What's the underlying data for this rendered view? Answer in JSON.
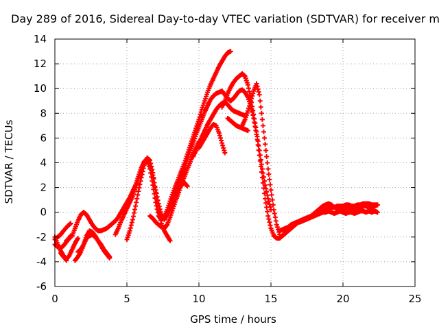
{
  "chart_data": {
    "type": "scatter",
    "title": "Day 289 of 2016, Sidereal Day-to-day VTEC variation (SDTVAR) for receiver m",
    "xlabel": "GPS time / hours",
    "ylabel": "SDTVAR / TECUs",
    "xlim": [
      0,
      25
    ],
    "ylim": [
      -6,
      14
    ],
    "xticks": [
      0,
      5,
      10,
      15,
      20,
      25
    ],
    "yticks": [
      -6,
      -4,
      -2,
      0,
      2,
      4,
      6,
      8,
      10,
      12,
      14
    ],
    "grid": true,
    "marker": "+",
    "color": "#ff0000",
    "series": [
      {
        "x": [
          0.0,
          0.2,
          0.4,
          0.6,
          0.9,
          1.1
        ],
        "y": [
          -2.2,
          -2.0,
          -1.8,
          -1.5,
          -1.1,
          -0.9
        ]
      },
      {
        "x": [
          0.0,
          0.2,
          0.4,
          0.6,
          0.8
        ],
        "y": [
          -2.0,
          -2.6,
          -3.1,
          -3.5,
          -3.9
        ]
      },
      {
        "x": [
          0.0,
          0.2,
          0.4,
          0.6,
          0.8,
          1.0,
          1.1
        ],
        "y": [
          -2.6,
          -2.8,
          -2.9,
          -2.7,
          -2.4,
          -2.1,
          -1.9
        ]
      },
      {
        "x": [
          0.8,
          1.0,
          1.2,
          1.4,
          1.6,
          1.8,
          2.0,
          2.2,
          2.4,
          2.6,
          2.8,
          3.0,
          3.2,
          3.4,
          3.6,
          3.8,
          4.0,
          4.2,
          4.4,
          4.6,
          4.8,
          5.0,
          5.2,
          5.4,
          5.6,
          5.8,
          6.0,
          6.2,
          6.4,
          6.6,
          6.8,
          7.0,
          7.2,
          7.4,
          7.6,
          7.8,
          8.0,
          8.2,
          8.4,
          8.6,
          8.8,
          9.0,
          9.2,
          9.4,
          9.6,
          9.8,
          10.0,
          10.2,
          10.4,
          10.6,
          10.8,
          11.0,
          11.2,
          11.4,
          11.6,
          11.8,
          12.0,
          12.2
        ],
        "y": [
          -2.3,
          -2.1,
          -1.9,
          -1.3,
          -0.7,
          -0.2,
          0.0,
          -0.2,
          -0.6,
          -1.0,
          -1.3,
          -1.5,
          -1.5,
          -1.4,
          -1.3,
          -1.1,
          -0.9,
          -0.7,
          -0.4,
          0.0,
          0.4,
          0.8,
          1.2,
          1.7,
          2.2,
          2.9,
          3.6,
          4.1,
          4.3,
          3.5,
          2.2,
          0.8,
          -0.3,
          -0.6,
          -0.4,
          0.2,
          0.9,
          1.6,
          2.2,
          2.8,
          3.4,
          4.0,
          4.7,
          5.4,
          6.1,
          6.8,
          7.5,
          8.3,
          9.0,
          9.7,
          10.3,
          10.8,
          11.3,
          11.8,
          12.2,
          12.6,
          12.9,
          13.0
        ]
      },
      {
        "x": [
          1.4,
          1.6,
          1.8,
          2.0,
          2.2,
          2.4,
          2.6,
          2.8,
          3.0,
          3.2,
          3.4,
          3.6,
          3.8
        ],
        "y": [
          -3.9,
          -3.6,
          -3.2,
          -2.6,
          -1.9,
          -1.5,
          -1.6,
          -1.9,
          -2.3,
          -2.7,
          -3.1,
          -3.4,
          -3.7
        ]
      },
      {
        "x": [
          1.6,
          1.8,
          2.0,
          2.2,
          2.4,
          2.6,
          2.8,
          3.0,
          3.2,
          3.4,
          3.6,
          3.8
        ],
        "y": [
          -3.2,
          -3.0,
          -2.6,
          -2.1,
          -1.9,
          -1.8,
          -2.0,
          -2.3,
          -2.6,
          -3.0,
          -3.3,
          -3.6
        ]
      },
      {
        "x": [
          0.4,
          0.6,
          0.8,
          1.0,
          1.2,
          1.4,
          1.6
        ],
        "y": [
          -3.3,
          -3.6,
          -3.8,
          -3.5,
          -3.0,
          -2.5,
          -2.1
        ]
      },
      {
        "x": [
          4.2,
          4.4,
          4.6,
          4.8,
          5.0,
          5.2,
          5.4,
          5.6,
          5.8,
          6.0,
          6.2,
          6.4,
          6.6,
          6.8,
          7.0,
          7.2,
          7.4,
          7.6,
          7.8,
          8.0,
          8.2,
          8.4,
          8.6,
          8.8,
          9.0,
          9.2,
          9.4,
          9.6,
          9.8,
          10.0,
          10.2,
          10.4,
          10.6,
          10.8,
          11.0,
          11.2,
          11.4,
          11.6,
          11.8,
          12.0,
          12.2,
          12.4,
          12.6,
          12.8,
          13.0,
          13.2,
          13.4,
          13.6,
          13.8,
          14.0,
          14.2,
          14.4,
          14.6,
          14.8,
          15.0,
          15.2,
          15.4,
          15.6,
          15.8,
          16.0,
          16.2,
          16.4,
          16.6,
          16.8,
          17.0,
          17.2,
          17.4,
          17.6,
          17.8,
          18.0,
          18.2,
          18.4,
          18.6,
          18.8,
          19.0,
          19.2,
          19.4,
          19.6,
          19.8,
          20.0,
          20.2,
          20.4,
          20.6,
          20.8,
          21.0,
          21.2,
          21.4,
          21.6,
          21.8,
          22.0,
          22.2,
          22.4
        ],
        "y": [
          -1.8,
          -1.3,
          -0.7,
          -0.2,
          0.3,
          0.8,
          1.3,
          2.0,
          2.7,
          3.4,
          4.0,
          4.2,
          3.8,
          3.0,
          1.8,
          0.7,
          -0.2,
          -0.5,
          -0.2,
          0.4,
          1.1,
          1.7,
          2.4,
          3.0,
          3.6,
          4.3,
          5.0,
          5.6,
          6.3,
          6.9,
          7.5,
          8.1,
          8.6,
          9.1,
          9.4,
          9.6,
          9.7,
          9.8,
          9.5,
          9.2,
          9.0,
          9.2,
          9.5,
          9.8,
          9.9,
          9.7,
          9.3,
          8.6,
          7.6,
          6.3,
          4.6,
          2.8,
          1.1,
          -0.3,
          -1.3,
          -1.9,
          -2.1,
          -2.1,
          -1.9,
          -1.6,
          -1.3,
          -1.1,
          -0.9,
          -0.8,
          -0.7,
          -0.6,
          -0.5,
          -0.4,
          -0.3,
          -0.2,
          -0.1,
          0.0,
          0.1,
          0.2,
          0.3,
          0.4,
          0.4,
          0.5,
          0.5,
          0.5,
          0.6,
          0.6,
          0.5,
          0.5,
          0.6,
          0.6,
          0.7,
          0.7,
          0.7,
          0.6,
          0.6,
          0.6
        ]
      },
      {
        "x": [
          5.0,
          5.2,
          5.4,
          5.6,
          5.8,
          6.0,
          6.2,
          6.4,
          6.6,
          6.8,
          7.0,
          7.2,
          7.4,
          7.6,
          7.8,
          8.0
        ],
        "y": [
          -2.2,
          -1.5,
          -0.6,
          0.5,
          1.7,
          2.8,
          3.8,
          4.4,
          4.2,
          3.2,
          1.6,
          0.1,
          -0.9,
          -1.5,
          -1.9,
          -2.3
        ]
      },
      {
        "x": [
          6.6,
          6.8,
          7.0,
          7.2,
          7.4,
          7.6,
          7.8,
          8.0,
          8.2,
          8.4,
          8.6,
          8.8,
          9.0,
          9.2,
          9.4,
          9.6,
          9.8,
          10.0
        ],
        "y": [
          -0.3,
          -0.5,
          -0.8,
          -1.0,
          -1.2,
          -1.3,
          -1.0,
          -0.4,
          0.3,
          1.0,
          1.6,
          2.3,
          2.9,
          3.5,
          4.1,
          4.7,
          5.2,
          5.7
        ]
      },
      {
        "x": [
          7.6,
          7.8,
          8.0,
          8.2,
          8.4,
          8.6,
          8.8,
          9.0,
          9.2
        ],
        "y": [
          -0.6,
          -0.1,
          0.5,
          1.0,
          1.5,
          1.9,
          2.2,
          2.4,
          2.1
        ]
      },
      {
        "x": [
          9.6,
          9.8,
          10.0,
          10.2,
          10.4,
          10.6,
          10.8,
          11.0,
          11.2,
          11.4,
          11.6,
          11.8,
          12.0,
          12.2,
          12.4,
          12.6,
          12.8,
          13.0,
          13.2
        ],
        "y": [
          4.5,
          5.0,
          5.6,
          6.1,
          6.6,
          7.1,
          7.5,
          7.9,
          8.3,
          8.6,
          8.8,
          8.9,
          8.7,
          8.4,
          8.2,
          8.1,
          8.0,
          7.9,
          7.8
        ]
      },
      {
        "x": [
          10.0,
          10.2,
          10.4,
          10.6,
          10.8,
          11.0,
          11.2,
          11.4,
          11.6,
          11.8
        ],
        "y": [
          5.2,
          5.6,
          6.0,
          6.4,
          6.8,
          7.1,
          7.0,
          6.4,
          5.6,
          4.8
        ]
      },
      {
        "x": [
          11.6,
          11.8,
          12.0,
          12.2,
          12.4,
          12.6,
          12.8,
          13.0,
          13.2,
          13.4,
          13.6,
          13.8,
          14.0,
          14.2,
          14.4,
          14.6,
          14.8,
          15.0
        ],
        "y": [
          8.5,
          9.0,
          9.6,
          10.1,
          10.5,
          10.8,
          11.0,
          11.2,
          11.0,
          10.3,
          9.2,
          7.9,
          6.5,
          5.0,
          3.5,
          2.2,
          1.1,
          0.2
        ]
      },
      {
        "x": [
          13.0,
          13.2,
          13.4,
          13.6,
          13.8,
          14.0,
          14.2,
          14.4,
          14.6,
          14.8,
          15.0,
          15.2,
          15.4,
          15.6
        ],
        "y": [
          7.0,
          7.5,
          8.2,
          9.0,
          9.8,
          10.4,
          9.5,
          7.5,
          5.5,
          3.5,
          1.8,
          0.2,
          -1.0,
          -1.8
        ]
      },
      {
        "x": [
          12.0,
          12.2,
          12.4,
          12.6,
          12.8,
          13.0,
          13.2,
          13.4
        ],
        "y": [
          7.6,
          7.4,
          7.2,
          7.0,
          6.9,
          6.8,
          6.7,
          6.6
        ]
      },
      {
        "x": [
          15.8,
          16.0,
          16.2,
          16.4,
          16.6,
          16.8,
          17.0,
          17.2,
          17.4,
          17.6,
          17.8,
          18.0,
          18.2,
          18.4,
          18.6,
          18.8,
          19.0,
          19.2,
          19.4,
          19.6,
          19.8,
          20.0,
          20.2,
          20.4,
          20.6,
          20.8,
          21.0,
          21.2,
          21.4,
          21.6,
          21.8,
          22.0,
          22.2,
          22.4
        ],
        "y": [
          -1.9,
          -1.7,
          -1.5,
          -1.3,
          -1.1,
          -0.9,
          -0.7,
          -0.6,
          -0.5,
          -0.4,
          -0.3,
          -0.1,
          0.1,
          0.3,
          0.5,
          0.6,
          0.7,
          0.6,
          0.4,
          0.3,
          0.2,
          0.2,
          0.3,
          0.4,
          0.3,
          0.2,
          0.3,
          0.4,
          0.5,
          0.5,
          0.4,
          0.4,
          0.5,
          0.6
        ]
      },
      {
        "x": [
          15.6,
          15.8,
          16.0,
          16.2,
          16.4,
          16.6,
          16.8,
          17.0,
          17.2,
          17.4,
          17.6,
          17.8,
          18.0,
          18.2,
          18.4,
          18.6,
          18.8,
          19.0,
          19.2,
          19.4,
          19.6,
          19.8,
          20.0,
          20.2,
          20.4,
          20.6,
          20.8,
          21.0,
          21.2,
          21.4,
          21.6,
          21.8,
          22.0,
          22.2,
          22.4
        ],
        "y": [
          -1.5,
          -1.4,
          -1.3,
          -1.2,
          -1.0,
          -0.9,
          -0.8,
          -0.8,
          -0.7,
          -0.6,
          -0.5,
          -0.4,
          -0.3,
          -0.2,
          -0.1,
          0.0,
          0.0,
          0.1,
          0.0,
          -0.1,
          0.0,
          0.1,
          0.0,
          -0.1,
          0.0,
          0.0,
          -0.1,
          0.0,
          0.1,
          0.1,
          0.0,
          0.1,
          0.0,
          0.1,
          0.0
        ]
      }
    ]
  }
}
